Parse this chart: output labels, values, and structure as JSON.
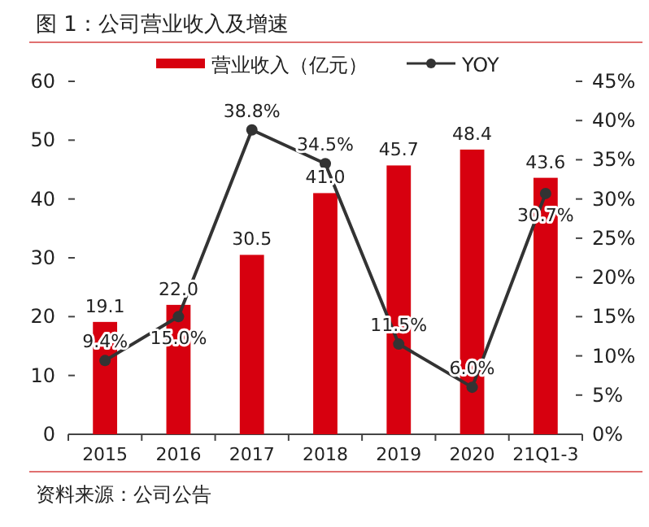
{
  "chart_data": {
    "type": "bar",
    "title": "图 1：公司营业收入及增速",
    "categories": [
      "2015",
      "2016",
      "2017",
      "2018",
      "2019",
      "2020",
      "21Q1-3"
    ],
    "series": [
      {
        "name": "营业收入（亿元）",
        "color": "#d7000f",
        "values": [
          19.1,
          22.0,
          30.5,
          41.0,
          45.7,
          48.4,
          43.6
        ],
        "value_labels": [
          "19.1",
          "22.0",
          "30.5",
          "41.0",
          "45.7",
          "48.4",
          "43.6"
        ]
      },
      {
        "name": "YOY",
        "type": "line",
        "axis": "y2",
        "color": "#333333",
        "marker": "circle",
        "values": [
          9.4,
          15.0,
          38.8,
          34.5,
          11.5,
          6.0,
          30.7
        ],
        "value_labels": [
          "9.4%",
          "15.0%",
          "38.8%",
          "34.5%",
          "11.5%",
          "6.0%",
          "30.7%"
        ]
      }
    ],
    "ylim": [
      0,
      60
    ],
    "yticks": [
      0,
      10,
      20,
      30,
      40,
      50,
      60
    ],
    "y2lim": [
      0,
      45
    ],
    "y2ticks": [
      {
        "value": 0,
        "label": "0%"
      },
      {
        "value": 5,
        "label": "5%"
      },
      {
        "value": 10,
        "label": "10%"
      },
      {
        "value": 15,
        "label": "15%"
      },
      {
        "value": 20,
        "label": "20%"
      },
      {
        "value": 25,
        "label": "25%"
      },
      {
        "value": 30,
        "label": "30%"
      },
      {
        "value": 35,
        "label": "35%"
      },
      {
        "value": 40,
        "label": "40%"
      },
      {
        "value": 45,
        "label": "45%"
      }
    ],
    "legend": "top",
    "annotations": [
      "资料来源：公司公告"
    ]
  }
}
